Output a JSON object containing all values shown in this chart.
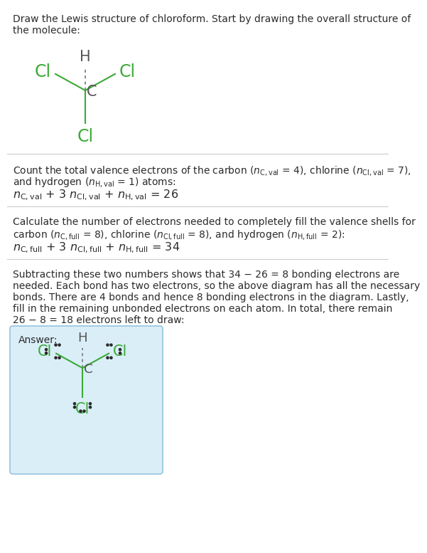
{
  "bg_color": "#ffffff",
  "text_color": "#2b2b2b",
  "cl_color": "#3aaa35",
  "c_color": "#555555",
  "h_color": "#555555",
  "bond_color_green": "#3aaa35",
  "bond_color_dark": "#777777",
  "dot_color": "#2b2b2b",
  "sep_color": "#cccccc",
  "answer_box_fill": "#daeef8",
  "answer_box_edge": "#9cc8e0",
  "title_line1": "Draw the Lewis structure of chloroform. Start by drawing the overall structure of",
  "title_line2": "the molecule:",
  "sec1_line1": "Count the total valence electrons of the carbon (",
  "sec1_line1b": " = 4), chlorine (",
  "sec1_line1c": " = 7),",
  "sec1_line2a": "and hydrogen (",
  "sec1_line2b": " = 1) atoms:",
  "sec1_eq": " + 3  +  = 26",
  "sec2_line1": "Calculate the number of electrons needed to completely fill the valence shells for",
  "sec2_line2a": "carbon (",
  "sec2_line2b": " = 8), chlorine (",
  "sec2_line2c": " = 8), and hydrogen (",
  "sec2_line2d": " = 2):",
  "sec2_eq": " + 3  +  = 34",
  "sec3_line1": "Subtracting these two numbers shows that 34 − 26 = 8 bonding electrons are",
  "sec3_line2": "needed. Each bond has two electrons, so the above diagram has all the necessary",
  "sec3_line3": "bonds. There are 4 bonds and hence 8 bonding electrons in the diagram. Lastly,",
  "sec3_line4": "fill in the remaining unbonded electrons on each atom. In total, there remain",
  "sec3_line5": "26 − 8 = 18 electrons left to draw:",
  "answer_label": "Answer:"
}
